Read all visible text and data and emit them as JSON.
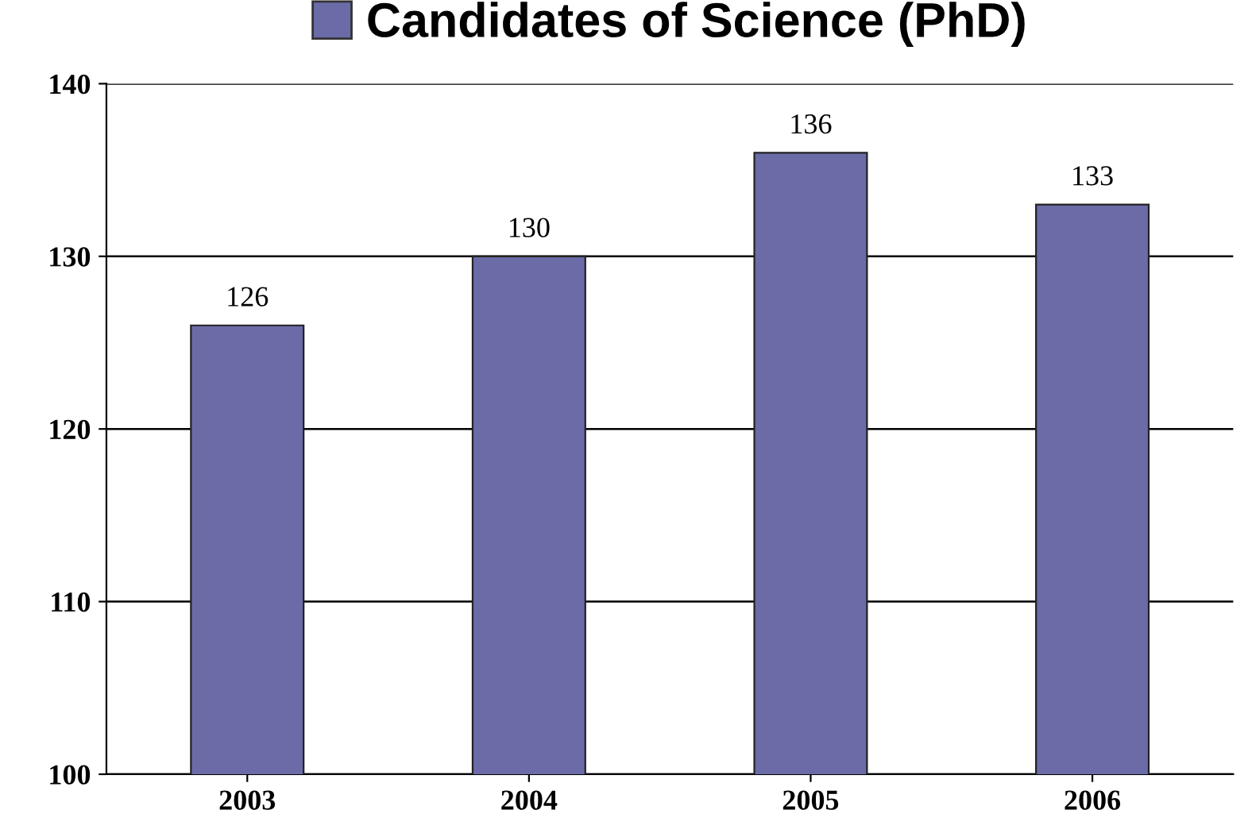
{
  "chart_data": {
    "type": "bar",
    "categories": [
      "2003",
      "2004",
      "2005",
      "2006"
    ],
    "series": [
      {
        "name": "Candidates of Science (PhD)",
        "color": "#6b6ba8",
        "values": [
          126,
          130,
          136,
          133
        ]
      }
    ],
    "ylim": [
      100,
      140
    ],
    "yticks": [
      100,
      110,
      120,
      130,
      140
    ],
    "grid": "y",
    "legend": "top",
    "data_labels": true
  }
}
